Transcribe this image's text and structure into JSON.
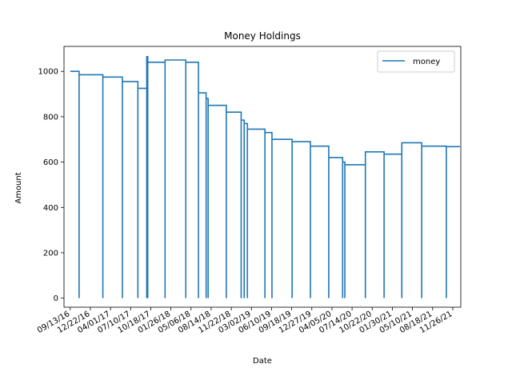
{
  "chart_data": {
    "type": "line",
    "title": "Money Holdings",
    "xlabel": "Date",
    "ylabel": "Amount",
    "xlim": [
      "2016-08-13",
      "2022-01-05"
    ],
    "ylim": [
      -40,
      1110
    ],
    "x_ticks": [
      "09/13/16",
      "12/22/16",
      "04/01/17",
      "07/10/17",
      "10/18/17",
      "01/26/18",
      "05/06/18",
      "08/14/18",
      "11/22/18",
      "03/02/19",
      "06/10/19",
      "09/18/19",
      "12/27/19",
      "04/05/20",
      "07/14/20",
      "10/22/20",
      "01/30/21",
      "05/10/21",
      "08/18/21",
      "11/26/21"
    ],
    "y_ticks": [
      0,
      200,
      400,
      600,
      800,
      1000
    ],
    "legend": {
      "position": "top-right",
      "entries": [
        "money"
      ]
    },
    "grid": false,
    "line_color": "#1f77b4",
    "series": [
      {
        "name": "money",
        "points": [
          [
            "2016-09-13",
            1000
          ],
          [
            "2016-10-27",
            1000
          ],
          [
            "2016-10-27",
            985
          ],
          [
            "2016-10-27",
            0
          ],
          [
            "2016-10-27",
            985
          ],
          [
            "2017-02-22",
            985
          ],
          [
            "2017-02-22",
            975
          ],
          [
            "2017-02-22",
            0
          ],
          [
            "2017-02-22",
            975
          ],
          [
            "2017-05-30",
            975
          ],
          [
            "2017-05-30",
            955
          ],
          [
            "2017-05-30",
            0
          ],
          [
            "2017-05-30",
            955
          ],
          [
            "2017-08-15",
            955
          ],
          [
            "2017-08-15",
            925
          ],
          [
            "2017-08-15",
            0
          ],
          [
            "2017-08-15",
            925
          ],
          [
            "2017-09-28",
            925
          ],
          [
            "2017-09-28",
            0
          ],
          [
            "2017-09-28",
            1065
          ],
          [
            "2017-10-03",
            1065
          ],
          [
            "2017-10-03",
            0
          ],
          [
            "2017-10-03",
            1040
          ],
          [
            "2017-12-28",
            1040
          ],
          [
            "2017-12-28",
            0
          ],
          [
            "2017-12-28",
            1050
          ],
          [
            "2018-04-10",
            1050
          ],
          [
            "2018-04-10",
            0
          ],
          [
            "2018-04-10",
            1040
          ],
          [
            "2018-06-12",
            1040
          ],
          [
            "2018-06-12",
            0
          ],
          [
            "2018-06-12",
            905
          ],
          [
            "2018-07-20",
            905
          ],
          [
            "2018-07-20",
            0
          ],
          [
            "2018-07-20",
            880
          ],
          [
            "2018-07-30",
            880
          ],
          [
            "2018-07-30",
            0
          ],
          [
            "2018-07-30",
            850
          ],
          [
            "2018-10-28",
            850
          ],
          [
            "2018-10-28",
            0
          ],
          [
            "2018-10-28",
            820
          ],
          [
            "2019-01-10",
            820
          ],
          [
            "2019-01-10",
            0
          ],
          [
            "2019-01-10",
            785
          ],
          [
            "2019-01-25",
            785
          ],
          [
            "2019-01-25",
            0
          ],
          [
            "2019-01-25",
            770
          ],
          [
            "2019-02-10",
            770
          ],
          [
            "2019-02-10",
            0
          ],
          [
            "2019-02-10",
            745
          ],
          [
            "2019-05-08",
            745
          ],
          [
            "2019-05-08",
            0
          ],
          [
            "2019-05-08",
            730
          ],
          [
            "2019-06-12",
            730
          ],
          [
            "2019-06-12",
            0
          ],
          [
            "2019-06-12",
            700
          ],
          [
            "2019-09-20",
            700
          ],
          [
            "2019-09-20",
            0
          ],
          [
            "2019-09-20",
            690
          ],
          [
            "2019-12-20",
            690
          ],
          [
            "2019-12-20",
            0
          ],
          [
            "2019-12-20",
            670
          ],
          [
            "2020-03-20",
            670
          ],
          [
            "2020-03-20",
            0
          ],
          [
            "2020-03-20",
            620
          ],
          [
            "2020-05-28",
            620
          ],
          [
            "2020-05-28",
            0
          ],
          [
            "2020-05-28",
            600
          ],
          [
            "2020-06-08",
            600
          ],
          [
            "2020-06-08",
            0
          ],
          [
            "2020-06-08",
            588
          ],
          [
            "2020-09-18",
            588
          ],
          [
            "2020-09-18",
            0
          ],
          [
            "2020-09-18",
            645
          ],
          [
            "2020-12-20",
            645
          ],
          [
            "2020-12-20",
            0
          ],
          [
            "2020-12-20",
            635
          ],
          [
            "2021-03-18",
            635
          ],
          [
            "2021-03-18",
            0
          ],
          [
            "2021-03-18",
            685
          ],
          [
            "2021-06-25",
            685
          ],
          [
            "2021-06-25",
            0
          ],
          [
            "2021-06-25",
            670
          ],
          [
            "2021-10-25",
            670
          ],
          [
            "2021-10-25",
            0
          ],
          [
            "2021-10-25",
            668
          ],
          [
            "2022-01-01",
            668
          ]
        ]
      }
    ]
  }
}
